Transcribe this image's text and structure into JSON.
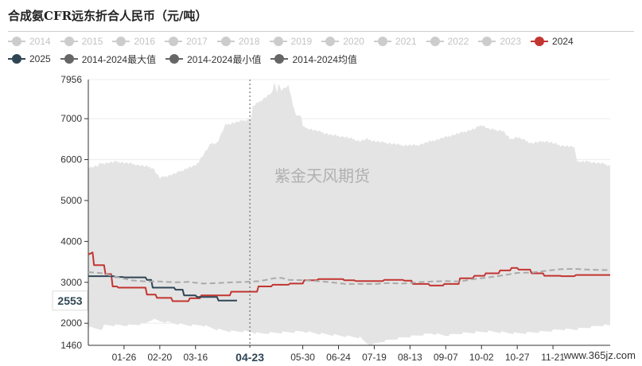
{
  "title": "合成氨CFR远东折合人民币（元/吨）",
  "watermark": "紫金天风期货",
  "site_watermark": "www.365jz.com",
  "colors": {
    "band": "#e4e4e4",
    "series_2024": "#c23531",
    "series_2025": "#2f4554",
    "avg": "#aaaaaa",
    "legend_inactive": "#cccccc",
    "legend_neutral": "#666666"
  },
  "legend_rows": [
    [
      {
        "label": "2014",
        "active": false,
        "color": "#cccccc"
      },
      {
        "label": "2015",
        "active": false,
        "color": "#cccccc"
      },
      {
        "label": "2016",
        "active": false,
        "color": "#cccccc"
      },
      {
        "label": "2017",
        "active": false,
        "color": "#cccccc"
      },
      {
        "label": "2018",
        "active": false,
        "color": "#cccccc"
      },
      {
        "label": "2019",
        "active": false,
        "color": "#cccccc"
      },
      {
        "label": "2020",
        "active": false,
        "color": "#cccccc"
      },
      {
        "label": "2021",
        "active": false,
        "color": "#cccccc"
      },
      {
        "label": "2022",
        "active": false,
        "color": "#cccccc"
      },
      {
        "label": "2023",
        "active": false,
        "color": "#cccccc"
      },
      {
        "label": "2024",
        "active": true,
        "color": "#c23531"
      }
    ],
    [
      {
        "label": "2025",
        "active": true,
        "color": "#2f4554"
      },
      {
        "label": "2014-2024最大值",
        "active": true,
        "color": "#666666"
      },
      {
        "label": "2014-2024最小值",
        "active": true,
        "color": "#666666"
      },
      {
        "label": "2014-2024均值",
        "active": true,
        "color": "#666666"
      }
    ]
  ],
  "chart_data": {
    "type": "line",
    "title": "合成氨CFR远东折合人民币（元/吨）",
    "x_domain_days": [
      0,
      365
    ],
    "ylim": [
      1460,
      7956
    ],
    "yticks": [
      2000,
      3000,
      4000,
      5000,
      6000,
      7000
    ],
    "y_extreme_labels": [
      "7956",
      "1460"
    ],
    "xticks": [
      {
        "label": "01-26",
        "day": 25
      },
      {
        "label": "02-20",
        "day": 50
      },
      {
        "label": "03-16",
        "day": 75
      },
      {
        "label": "04-23",
        "day": 113,
        "highlight": true
      },
      {
        "label": "05-30",
        "day": 150
      },
      {
        "label": "06-24",
        "day": 175
      },
      {
        "label": "07-19",
        "day": 200
      },
      {
        "label": "08-13",
        "day": 225
      },
      {
        "label": "09-07",
        "day": 250
      },
      {
        "label": "10-02",
        "day": 275
      },
      {
        "label": "10-27",
        "day": 300
      },
      {
        "label": "11-21",
        "day": 325
      }
    ],
    "pointer_value_label": "2553",
    "band_max": {
      "name": "2014-2024最大值",
      "days": [
        0,
        7,
        8,
        20,
        30,
        45,
        50,
        60,
        70,
        75,
        86,
        90,
        96,
        114,
        115,
        129,
        130,
        132,
        133,
        135,
        140,
        145,
        149,
        150,
        155,
        160,
        170,
        180,
        190,
        195,
        200,
        210,
        220,
        230,
        240,
        250,
        260,
        270,
        275,
        280,
        290,
        295,
        300,
        310,
        320,
        325,
        330,
        340,
        342,
        350,
        360,
        365
      ],
      "values": [
        5800,
        5850,
        5900,
        5950,
        5900,
        5800,
        5550,
        5650,
        5800,
        5850,
        6400,
        6400,
        6850,
        7000,
        7300,
        7650,
        7900,
        7650,
        7850,
        7700,
        7800,
        7100,
        7050,
        6800,
        6750,
        6700,
        6600,
        6550,
        6450,
        6500,
        6450,
        6400,
        6350,
        6350,
        6450,
        6550,
        6650,
        6750,
        6850,
        6750,
        6700,
        6500,
        6550,
        6400,
        6450,
        6400,
        6350,
        6300,
        5950,
        5950,
        5900,
        5850
      ]
    },
    "band_min": {
      "name": "2014-2024最小值",
      "days": [
        0,
        10,
        11,
        30,
        40,
        45,
        50,
        60,
        70,
        80,
        90,
        100,
        110,
        120,
        140,
        150,
        160,
        175,
        190,
        195,
        198,
        205,
        220,
        240,
        250,
        260,
        280,
        300,
        320,
        330,
        340,
        350,
        360,
        365
      ],
      "values": [
        1900,
        1850,
        1950,
        1950,
        2000,
        2100,
        2050,
        2000,
        1950,
        1950,
        1850,
        1800,
        1800,
        1750,
        1780,
        1800,
        1750,
        1700,
        1650,
        1500,
        1460,
        1550,
        1650,
        1750,
        1700,
        1750,
        1800,
        1750,
        1800,
        1850,
        1850,
        1900,
        1950,
        1950
      ]
    },
    "series": [
      {
        "name": "2024",
        "color": "#c23531",
        "style": "step",
        "days": [
          0,
          3,
          4,
          11,
          12,
          16,
          17,
          20,
          21,
          40,
          41,
          47,
          48,
          58,
          59,
          70,
          71,
          78,
          79,
          99,
          100,
          118,
          119,
          128,
          129,
          140,
          141,
          150,
          151,
          160,
          161,
          178,
          179,
          186,
          187,
          206,
          207,
          220,
          221,
          226,
          227,
          238,
          239,
          248,
          249,
          259,
          260,
          269,
          270,
          277,
          278,
          287,
          288,
          295,
          296,
          300,
          301,
          309,
          310,
          318,
          319,
          330,
          331,
          340,
          341,
          365
        ],
        "values": [
          3680,
          3730,
          3420,
          3420,
          3200,
          3200,
          2900,
          2900,
          2870,
          2870,
          2700,
          2700,
          2620,
          2620,
          2540,
          2540,
          2610,
          2610,
          2680,
          2680,
          2770,
          2770,
          2900,
          2900,
          2940,
          2940,
          2970,
          2970,
          3050,
          3050,
          3080,
          3080,
          3050,
          3050,
          3030,
          3030,
          3060,
          3060,
          3040,
          3040,
          2960,
          2960,
          2920,
          2920,
          2960,
          2960,
          3100,
          3100,
          3160,
          3160,
          3220,
          3220,
          3290,
          3290,
          3350,
          3350,
          3310,
          3310,
          3220,
          3220,
          3160,
          3160,
          3150,
          3150,
          3180,
          3180
        ]
      },
      {
        "name": "2025",
        "color": "#2f4554",
        "style": "step",
        "days": [
          0,
          18,
          19,
          24,
          25,
          40,
          41,
          44,
          45,
          60,
          61,
          66,
          67,
          75,
          76,
          90,
          91,
          104
        ],
        "values": [
          3150,
          3150,
          3130,
          3130,
          3120,
          3120,
          3060,
          3060,
          2870,
          2870,
          2820,
          2820,
          2680,
          2680,
          2640,
          2640,
          2553,
          2553
        ]
      },
      {
        "name": "2014-2024均值",
        "color": "#aaaaaa",
        "style": "dashed",
        "days": [
          0,
          10,
          20,
          30,
          40,
          50,
          60,
          70,
          80,
          90,
          100,
          110,
          120,
          130,
          135,
          140,
          150,
          160,
          170,
          180,
          190,
          200,
          210,
          220,
          230,
          240,
          250,
          260,
          270,
          280,
          290,
          300,
          310,
          320,
          330,
          340,
          350,
          360,
          365
        ],
        "values": [
          3250,
          3220,
          3130,
          3050,
          3020,
          3020,
          3000,
          3010,
          2970,
          2980,
          3000,
          3010,
          3030,
          3100,
          3110,
          3060,
          3050,
          3030,
          3000,
          2960,
          2960,
          2960,
          2980,
          2970,
          3000,
          3020,
          3030,
          3020,
          3080,
          3120,
          3170,
          3230,
          3240,
          3280,
          3320,
          3330,
          3310,
          3300,
          3300
        ]
      }
    ]
  }
}
